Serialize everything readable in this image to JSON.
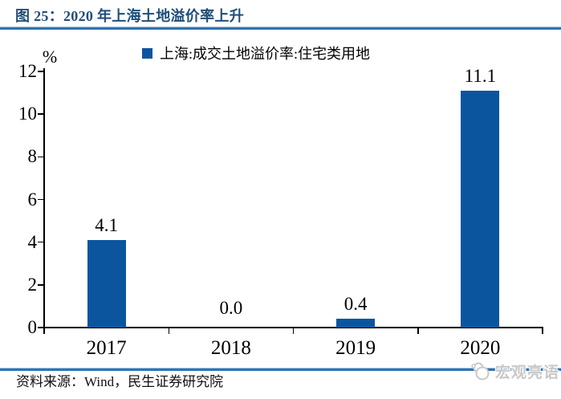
{
  "figure": {
    "title": "图 25：2020 年上海土地溢价率上升",
    "source": "资料来源：Wind，民生证券研究院",
    "watermark": "宏观亮语"
  },
  "chart_data": {
    "type": "bar",
    "title": "图 25：2020 年上海土地溢价率上升",
    "legend": [
      "上海:成交土地溢价率:住宅类用地"
    ],
    "legend_position": "top",
    "categories": [
      "2017",
      "2018",
      "2019",
      "2020"
    ],
    "values": [
      4.1,
      0.0,
      0.4,
      11.1
    ],
    "data_labels": [
      "4.1",
      "0.0",
      "0.4",
      "11.1"
    ],
    "unit_label": "%",
    "xlabel": "",
    "ylabel": "%",
    "ylim": [
      0,
      12
    ],
    "yticks": [
      0,
      2,
      4,
      6,
      8,
      10,
      12
    ],
    "grid": false,
    "colors": {
      "bar": "#0B559E",
      "title": "#1F4E79",
      "rule": "#2E74B5",
      "watermark": "#C8C8C8",
      "axis": "#000000"
    }
  }
}
